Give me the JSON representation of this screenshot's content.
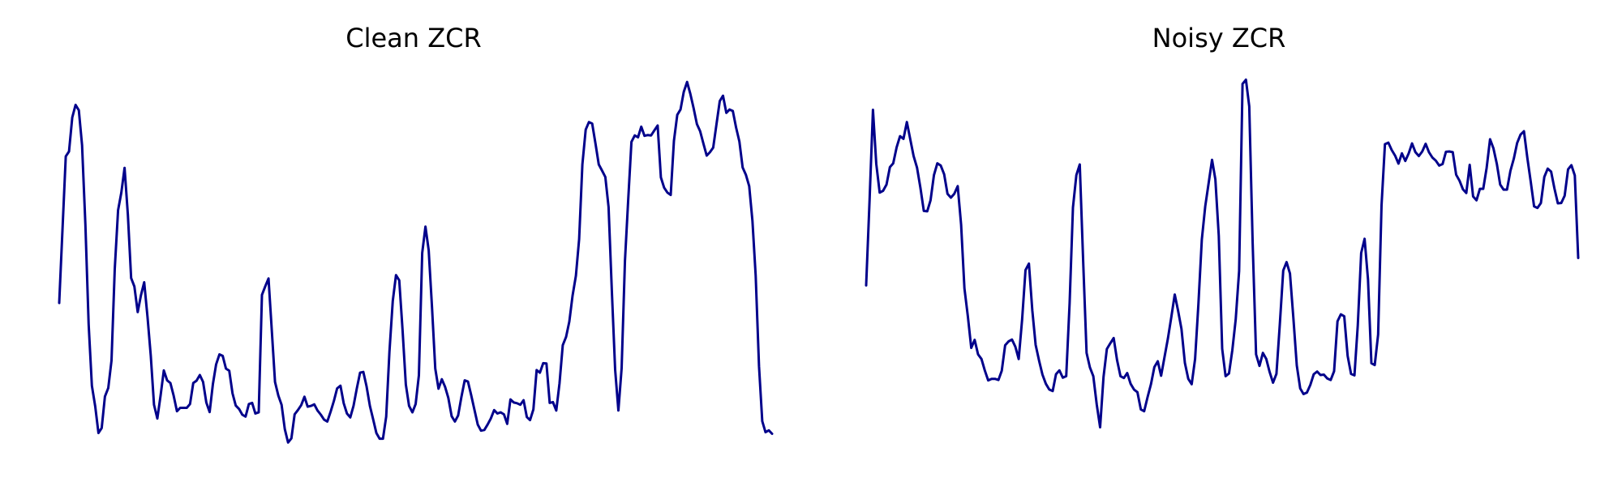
{
  "chart_data": [
    {
      "type": "line",
      "title": "Clean ZCR",
      "xlabel": "",
      "ylabel": "",
      "axes_visible": false,
      "grid": false,
      "legend": "none",
      "color": "#00008b",
      "ylim": [
        0,
        1
      ],
      "values": [
        0.395,
        0.585,
        0.779,
        0.792,
        0.881,
        0.914,
        0.9,
        0.808,
        0.6,
        0.339,
        0.178,
        0.124,
        0.054,
        0.067,
        0.15,
        0.172,
        0.244,
        0.484,
        0.638,
        0.684,
        0.749,
        0.625,
        0.46,
        0.438,
        0.371,
        0.415,
        0.449,
        0.358,
        0.257,
        0.128,
        0.092,
        0.152,
        0.218,
        0.192,
        0.185,
        0.152,
        0.111,
        0.12,
        0.12,
        0.12,
        0.13,
        0.185,
        0.191,
        0.206,
        0.188,
        0.134,
        0.109,
        0.182,
        0.234,
        0.26,
        0.256,
        0.223,
        0.217,
        0.158,
        0.126,
        0.117,
        0.102,
        0.097,
        0.13,
        0.133,
        0.105,
        0.108,
        0.416,
        0.438,
        0.459,
        0.324,
        0.188,
        0.152,
        0.128,
        0.064,
        0.029,
        0.04,
        0.103,
        0.114,
        0.127,
        0.149,
        0.123,
        0.125,
        0.129,
        0.113,
        0.102,
        0.089,
        0.084,
        0.11,
        0.138,
        0.171,
        0.178,
        0.132,
        0.105,
        0.095,
        0.125,
        0.17,
        0.212,
        0.214,
        0.176,
        0.125,
        0.09,
        0.054,
        0.039,
        0.039,
        0.097,
        0.267,
        0.4,
        0.468,
        0.454,
        0.323,
        0.181,
        0.125,
        0.108,
        0.13,
        0.205,
        0.526,
        0.595,
        0.533,
        0.383,
        0.223,
        0.17,
        0.195,
        0.175,
        0.146,
        0.098,
        0.084,
        0.1,
        0.148,
        0.192,
        0.189,
        0.153,
        0.114,
        0.076,
        0.06,
        0.062,
        0.076,
        0.092,
        0.114,
        0.105,
        0.108,
        0.103,
        0.078,
        0.142,
        0.134,
        0.132,
        0.128,
        0.14,
        0.096,
        0.088,
        0.116,
        0.219,
        0.212,
        0.237,
        0.236,
        0.133,
        0.135,
        0.113,
        0.184,
        0.284,
        0.306,
        0.346,
        0.414,
        0.466,
        0.562,
        0.758,
        0.849,
        0.869,
        0.865,
        0.812,
        0.758,
        0.742,
        0.725,
        0.646,
        0.428,
        0.22,
        0.113,
        0.224,
        0.505,
        0.665,
        0.817,
        0.834,
        0.829,
        0.857,
        0.833,
        0.835,
        0.834,
        0.847,
        0.86,
        0.724,
        0.697,
        0.684,
        0.678,
        0.82,
        0.888,
        0.902,
        0.948,
        0.974,
        0.943,
        0.906,
        0.864,
        0.845,
        0.813,
        0.781,
        0.79,
        0.802,
        0.864,
        0.924,
        0.938,
        0.893,
        0.902,
        0.898,
        0.855,
        0.818,
        0.75,
        0.731,
        0.701,
        0.61,
        0.466,
        0.229,
        0.085,
        0.056,
        0.061,
        0.052
      ]
    },
    {
      "type": "line",
      "title": "Noisy ZCR",
      "xlabel": "",
      "ylabel": "",
      "axes_visible": false,
      "grid": false,
      "legend": "none",
      "color": "#00008b",
      "ylim": [
        0,
        1
      ],
      "values": [
        0.441,
        0.663,
        0.901,
        0.759,
        0.684,
        0.689,
        0.705,
        0.751,
        0.761,
        0.803,
        0.832,
        0.825,
        0.869,
        0.824,
        0.78,
        0.75,
        0.697,
        0.636,
        0.635,
        0.664,
        0.73,
        0.761,
        0.755,
        0.732,
        0.681,
        0.671,
        0.681,
        0.701,
        0.6,
        0.433,
        0.36,
        0.277,
        0.298,
        0.26,
        0.248,
        0.218,
        0.192,
        0.196,
        0.196,
        0.193,
        0.217,
        0.284,
        0.294,
        0.299,
        0.28,
        0.248,
        0.351,
        0.481,
        0.498,
        0.375,
        0.285,
        0.244,
        0.207,
        0.183,
        0.168,
        0.164,
        0.208,
        0.218,
        0.199,
        0.203,
        0.395,
        0.645,
        0.73,
        0.758,
        0.504,
        0.264,
        0.226,
        0.203,
        0.129,
        0.069,
        0.201,
        0.274,
        0.289,
        0.303,
        0.245,
        0.203,
        0.198,
        0.211,
        0.183,
        0.168,
        0.161,
        0.116,
        0.111,
        0.148,
        0.182,
        0.227,
        0.242,
        0.204,
        0.253,
        0.302,
        0.358,
        0.417,
        0.375,
        0.327,
        0.238,
        0.196,
        0.182,
        0.248,
        0.392,
        0.561,
        0.648,
        0.709,
        0.77,
        0.719,
        0.571,
        0.275,
        0.203,
        0.21,
        0.271,
        0.352,
        0.479,
        0.969,
        0.98,
        0.91,
        0.551,
        0.26,
        0.23,
        0.264,
        0.248,
        0.214,
        0.186,
        0.209,
        0.34,
        0.48,
        0.502,
        0.472,
        0.355,
        0.231,
        0.171,
        0.156,
        0.16,
        0.18,
        0.208,
        0.215,
        0.206,
        0.207,
        0.197,
        0.193,
        0.216,
        0.347,
        0.365,
        0.36,
        0.256,
        0.209,
        0.205,
        0.336,
        0.526,
        0.563,
        0.457,
        0.237,
        0.232,
        0.312,
        0.651,
        0.811,
        0.815,
        0.796,
        0.781,
        0.76,
        0.787,
        0.767,
        0.787,
        0.813,
        0.79,
        0.78,
        0.792,
        0.812,
        0.79,
        0.776,
        0.768,
        0.755,
        0.759,
        0.791,
        0.792,
        0.79,
        0.731,
        0.715,
        0.693,
        0.683,
        0.757,
        0.674,
        0.664,
        0.694,
        0.694,
        0.749,
        0.824,
        0.8,
        0.759,
        0.705,
        0.692,
        0.692,
        0.741,
        0.773,
        0.814,
        0.836,
        0.845,
        0.775,
        0.712,
        0.648,
        0.644,
        0.657,
        0.725,
        0.747,
        0.739,
        0.695,
        0.656,
        0.657,
        0.676,
        0.745,
        0.756,
        0.729,
        0.513
      ]
    }
  ]
}
